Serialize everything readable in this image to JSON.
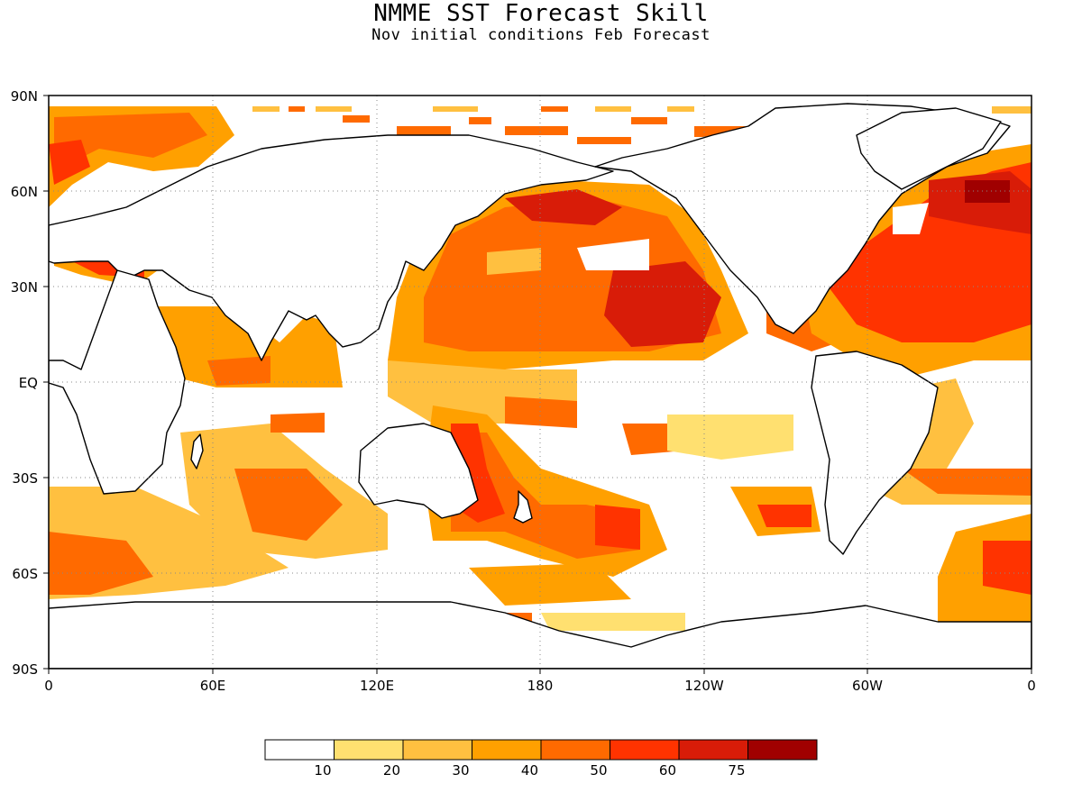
{
  "title": "NMME SST Forecast Skill",
  "subtitle": "Nov initial conditions  Feb Forecast",
  "map": {
    "lat_labels": [
      "90N",
      "60N",
      "30N",
      "EQ",
      "30S",
      "60S",
      "90S"
    ],
    "lon_labels": [
      "0",
      "60E",
      "120E",
      "180",
      "120W",
      "60W",
      "0"
    ],
    "grid": "dotted",
    "coastline_color": "#000000"
  },
  "colorbar": {
    "colors": [
      "#ffffff",
      "#ffe070",
      "#ffc040",
      "#ffa000",
      "#ff6a00",
      "#ff3300",
      "#d81c08",
      "#a00000"
    ],
    "tick_labels": [
      "10",
      "20",
      "30",
      "40",
      "50",
      "60",
      "75"
    ]
  }
}
